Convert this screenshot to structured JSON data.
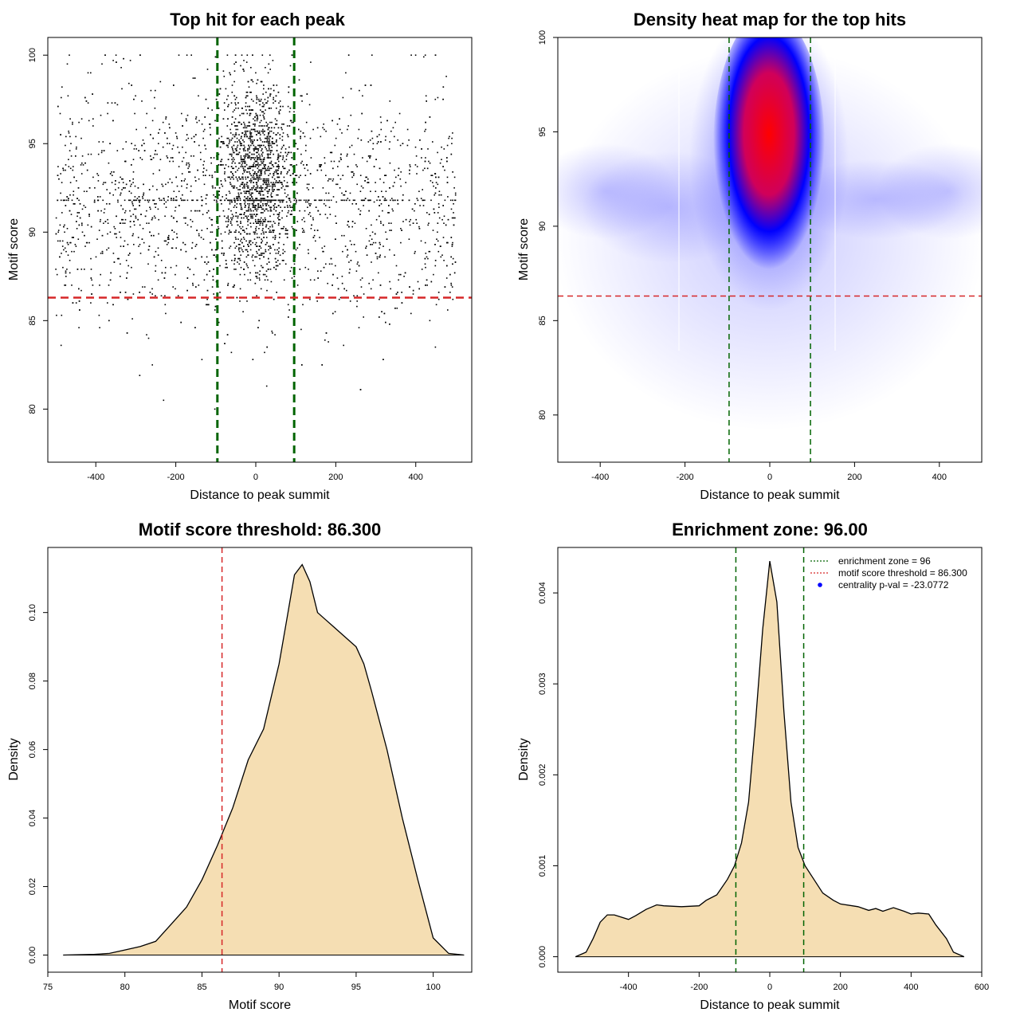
{
  "chart_data": [
    {
      "type": "scatter",
      "title": "Top hit for each peak",
      "xlabel": "Distance to peak summit",
      "ylabel": "Motif score",
      "xlim": [
        -520,
        540
      ],
      "ylim": [
        77,
        101
      ],
      "xticks": [
        "-400",
        "-200",
        "0",
        "200",
        "400"
      ],
      "yticks": [
        "80",
        "85",
        "90",
        "95",
        "100"
      ],
      "point_count": 4000,
      "zone_lines_x": [
        -96,
        96
      ],
      "threshold_line_y": 86.3,
      "colors": {
        "points": "#000000",
        "zone": "#006400",
        "threshold": "#d62728"
      }
    },
    {
      "type": "heatmap",
      "title": "Density heat map for the top hits",
      "xlabel": "Distance to peak summit",
      "ylabel": "Motif score",
      "xlim": [
        -500,
        500
      ],
      "ylim": [
        77.5,
        100
      ],
      "xticks": [
        "-400",
        "-200",
        "0",
        "200",
        "400"
      ],
      "yticks": [
        "80",
        "85",
        "90",
        "95",
        "100"
      ],
      "hotspot": {
        "x": 0,
        "y": 94
      },
      "zone_lines_x": [
        -96,
        96
      ],
      "threshold_line_y": 86.3,
      "colors": {
        "low": "#ffffff",
        "mid": "#0000ff",
        "high": "#ff0000",
        "zone": "#006400",
        "threshold": "#d62728"
      }
    },
    {
      "type": "area",
      "title": "Motif score threshold: 86.300",
      "xlabel": "Motif score",
      "ylabel": "Density",
      "xlim": [
        75,
        102.5
      ],
      "ylim": [
        -0.005,
        0.119
      ],
      "xticks": [
        "75",
        "80",
        "85",
        "90",
        "95",
        "100"
      ],
      "yticks": [
        "0.00",
        "0.02",
        "0.04",
        "0.06",
        "0.08",
        "0.10"
      ],
      "x": [
        76,
        78,
        79,
        80,
        81,
        82,
        83,
        84,
        85,
        86,
        87,
        88,
        89,
        90,
        90.5,
        91,
        91.5,
        92,
        92.5,
        93,
        93.5,
        94,
        95,
        95.5,
        96,
        97,
        98,
        99,
        100,
        101,
        102
      ],
      "y": [
        0,
        0.0002,
        0.0005,
        0.0015,
        0.0025,
        0.004,
        0.009,
        0.014,
        0.022,
        0.032,
        0.043,
        0.057,
        0.066,
        0.085,
        0.098,
        0.111,
        0.114,
        0.109,
        0.1,
        0.098,
        0.096,
        0.094,
        0.09,
        0.085,
        0.077,
        0.06,
        0.04,
        0.022,
        0.005,
        0.0005,
        0
      ],
      "threshold_line_x": 86.3,
      "colors": {
        "fill": "#f5deb3",
        "line": "#000000",
        "threshold": "#d62728"
      }
    },
    {
      "type": "area",
      "title": "Enrichment zone: 96.00",
      "xlabel": "Distance to peak summit",
      "ylabel": "Density",
      "xlim": [
        -600,
        600
      ],
      "ylim": [
        -0.00017,
        0.0045
      ],
      "xticks": [
        "-400",
        "-200",
        "0",
        "200",
        "400",
        "600"
      ],
      "yticks": [
        "0.000",
        "0.001",
        "0.002",
        "0.003",
        "0.004"
      ],
      "x": [
        -550,
        -520,
        -500,
        -480,
        -460,
        -440,
        -400,
        -380,
        -350,
        -320,
        -300,
        -250,
        -200,
        -180,
        -150,
        -120,
        -100,
        -80,
        -60,
        -40,
        -20,
        0,
        20,
        40,
        60,
        80,
        100,
        120,
        150,
        180,
        200,
        250,
        280,
        300,
        320,
        350,
        380,
        400,
        420,
        450,
        470,
        500,
        520,
        550
      ],
      "y": [
        0,
        5e-05,
        0.0002,
        0.00038,
        0.00046,
        0.00046,
        0.00041,
        0.00045,
        0.00052,
        0.00057,
        0.00056,
        0.00055,
        0.00056,
        0.00062,
        0.00068,
        0.00085,
        0.001,
        0.00125,
        0.0017,
        0.0026,
        0.0036,
        0.00435,
        0.0039,
        0.0027,
        0.0017,
        0.0012,
        0.001,
        0.00088,
        0.0007,
        0.00062,
        0.00058,
        0.00055,
        0.00051,
        0.00053,
        0.0005,
        0.00054,
        0.0005,
        0.00047,
        0.00048,
        0.00047,
        0.00035,
        0.0002,
        5e-05,
        0
      ],
      "zone_lines_x": [
        -96,
        96
      ],
      "legend": {
        "position": "top-right",
        "items": [
          {
            "label": "enrichment zone = 96",
            "kind": "dotted-line",
            "color": "#006400"
          },
          {
            "label": "motif score threshold = 86.300",
            "kind": "dotted-line",
            "color": "#d62728"
          },
          {
            "label": "centrality p-val = -23.0772",
            "kind": "point",
            "color": "#0000ff"
          }
        ]
      },
      "colors": {
        "fill": "#f5deb3",
        "line": "#000000",
        "zone": "#006400"
      }
    }
  ]
}
